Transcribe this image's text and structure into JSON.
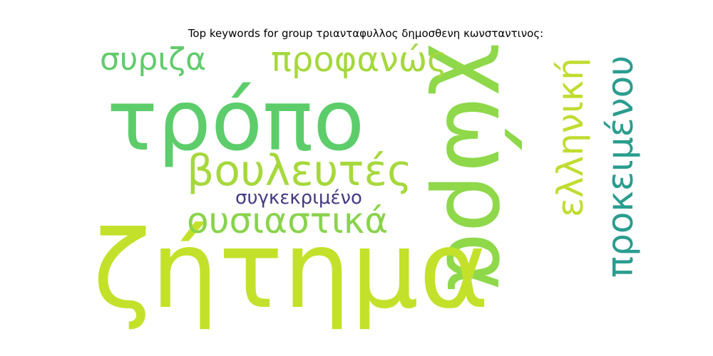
{
  "title": "Top keywords for group τριανταφυλλος δημοσθενη κωνσταντινος:",
  "colors": {
    "background": "#ffffff",
    "title": "#000000"
  },
  "words": [
    {
      "text": "τρόπο",
      "color": "#5ccd6a",
      "orientation": "horizontal"
    },
    {
      "text": "χώρα",
      "color": "#8ed84a",
      "orientation": "vertical"
    },
    {
      "text": "ζήτημα",
      "color": "#c3e12a",
      "orientation": "horizontal"
    },
    {
      "text": "βουλευτές",
      "color": "#a6d83c",
      "orientation": "horizontal"
    },
    {
      "text": "ουσιαστικά",
      "color": "#8ad34c",
      "orientation": "horizontal"
    },
    {
      "text": "συγκεκριμένο",
      "color": "#433b84",
      "orientation": "horizontal"
    },
    {
      "text": "συριζα",
      "color": "#61cb6c",
      "orientation": "horizontal"
    },
    {
      "text": "προφανώς",
      "color": "#a5d83d",
      "orientation": "horizontal"
    },
    {
      "text": "ελληνική",
      "color": "#c0dc30",
      "orientation": "vertical-reversed"
    },
    {
      "text": "προκειμένου",
      "color": "#2a9d8f",
      "orientation": "vertical-reversed"
    }
  ]
}
